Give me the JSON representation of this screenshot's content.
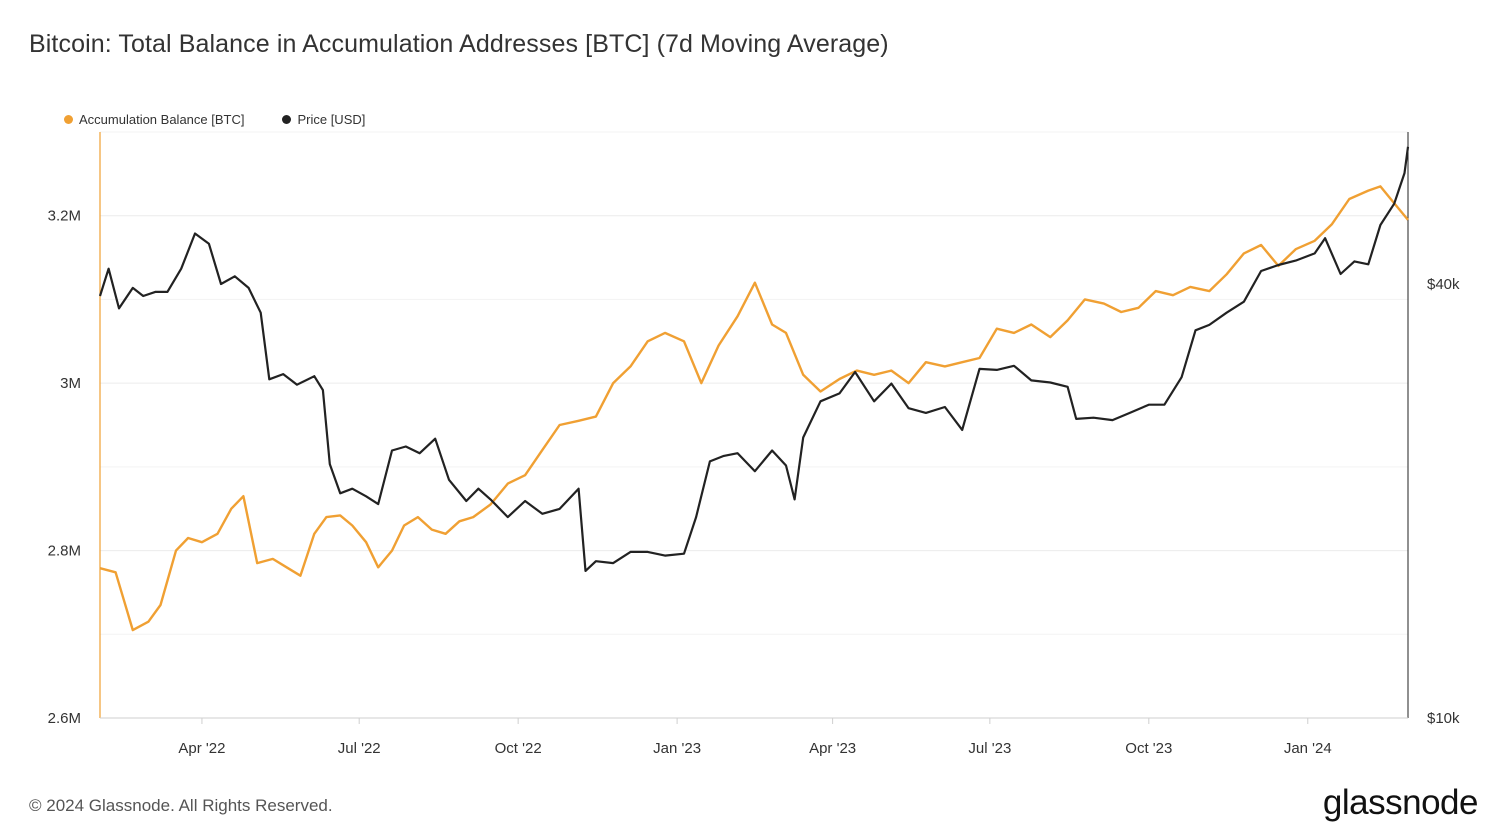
{
  "title": "Bitcoin: Total Balance in Accumulation Addresses [BTC] (7d Moving Average)",
  "footer": "© 2024 Glassnode. All Rights Reserved.",
  "logo": "glassnode",
  "chart_data": {
    "type": "line",
    "title": "Bitcoin: Total Balance in Accumulation Addresses [BTC] (7d Moving Average)",
    "legend_position": "top-left",
    "grid": true,
    "x_ticks": [
      "Apr '22",
      "Jul '22",
      "Oct '22",
      "Jan '23",
      "Apr '23",
      "Jul '23",
      "Oct '23",
      "Jan '24"
    ],
    "x_range": [
      "2022-02-01",
      "2024-02-28"
    ],
    "y_left": {
      "ticks": [
        "2.6M",
        "2.8M",
        "3M",
        "3.2M"
      ],
      "tick_values": [
        2600000,
        2800000,
        3000000,
        3200000
      ],
      "range": [
        2600000,
        3300000
      ]
    },
    "y_right": {
      "scale": "log",
      "ticks": [
        "$10k",
        "$40k"
      ],
      "tick_values": [
        10000,
        40000
      ],
      "range": [
        10000,
        65000
      ]
    },
    "colors": {
      "accumulation": "#f0a033",
      "price": "#222222"
    },
    "series": [
      {
        "name": "Accumulation Balance [BTC]",
        "axis": "left",
        "x": [
          "2022-02-01",
          "2022-02-10",
          "2022-02-20",
          "2022-03-01",
          "2022-03-08",
          "2022-03-17",
          "2022-03-24",
          "2022-04-01",
          "2022-04-10",
          "2022-04-18",
          "2022-04-25",
          "2022-05-03",
          "2022-05-12",
          "2022-05-20",
          "2022-05-28",
          "2022-06-05",
          "2022-06-12",
          "2022-06-20",
          "2022-06-27",
          "2022-07-05",
          "2022-07-12",
          "2022-07-20",
          "2022-07-27",
          "2022-08-04",
          "2022-08-12",
          "2022-08-20",
          "2022-08-28",
          "2022-09-05",
          "2022-09-15",
          "2022-09-25",
          "2022-10-05",
          "2022-10-15",
          "2022-10-25",
          "2022-11-05",
          "2022-11-15",
          "2022-11-25",
          "2022-12-05",
          "2022-12-15",
          "2022-12-25",
          "2023-01-05",
          "2023-01-15",
          "2023-01-25",
          "2023-02-05",
          "2023-02-15",
          "2023-02-25",
          "2023-03-05",
          "2023-03-15",
          "2023-03-25",
          "2023-04-05",
          "2023-04-15",
          "2023-04-25",
          "2023-05-05",
          "2023-05-15",
          "2023-05-25",
          "2023-06-05",
          "2023-06-15",
          "2023-06-25",
          "2023-07-05",
          "2023-07-15",
          "2023-07-25",
          "2023-08-05",
          "2023-08-15",
          "2023-08-25",
          "2023-09-05",
          "2023-09-15",
          "2023-09-25",
          "2023-10-05",
          "2023-10-15",
          "2023-10-25",
          "2023-11-05",
          "2023-11-15",
          "2023-11-25",
          "2023-12-05",
          "2023-12-15",
          "2023-12-25",
          "2024-01-05",
          "2024-01-15",
          "2024-01-25",
          "2024-02-05",
          "2024-02-12",
          "2024-02-20",
          "2024-02-28"
        ],
        "values": [
          2779000,
          2774000,
          2705000,
          2715000,
          2735000,
          2800000,
          2815000,
          2810000,
          2820000,
          2850000,
          2865000,
          2785000,
          2790000,
          2780000,
          2770000,
          2820000,
          2840000,
          2842000,
          2830000,
          2810000,
          2780000,
          2800000,
          2830000,
          2840000,
          2825000,
          2820000,
          2835000,
          2840000,
          2855000,
          2880000,
          2890000,
          2920000,
          2950000,
          2955000,
          2960000,
          3000000,
          3020000,
          3050000,
          3060000,
          3050000,
          3000000,
          3045000,
          3080000,
          3120000,
          3070000,
          3060000,
          3010000,
          2990000,
          3005000,
          3015000,
          3010000,
          3015000,
          3000000,
          3025000,
          3020000,
          3025000,
          3030000,
          3065000,
          3060000,
          3070000,
          3055000,
          3075000,
          3100000,
          3095000,
          3085000,
          3090000,
          3110000,
          3105000,
          3115000,
          3110000,
          3130000,
          3155000,
          3165000,
          3140000,
          3160000,
          3170000,
          3190000,
          3220000,
          3230000,
          3235000,
          3215000,
          3195000
        ]
      },
      {
        "name": "Price [USD]",
        "axis": "right",
        "x": [
          "2022-02-01",
          "2022-02-06",
          "2022-02-12",
          "2022-02-20",
          "2022-02-26",
          "2022-03-05",
          "2022-03-12",
          "2022-03-20",
          "2022-03-28",
          "2022-04-05",
          "2022-04-12",
          "2022-04-20",
          "2022-04-28",
          "2022-05-05",
          "2022-05-10",
          "2022-05-18",
          "2022-05-26",
          "2022-06-05",
          "2022-06-10",
          "2022-06-14",
          "2022-06-20",
          "2022-06-27",
          "2022-07-05",
          "2022-07-12",
          "2022-07-20",
          "2022-07-28",
          "2022-08-05",
          "2022-08-14",
          "2022-08-22",
          "2022-09-01",
          "2022-09-08",
          "2022-09-15",
          "2022-09-25",
          "2022-10-05",
          "2022-10-15",
          "2022-10-25",
          "2022-11-05",
          "2022-11-09",
          "2022-11-15",
          "2022-11-25",
          "2022-12-05",
          "2022-12-15",
          "2022-12-25",
          "2023-01-05",
          "2023-01-12",
          "2023-01-20",
          "2023-01-28",
          "2023-02-05",
          "2023-02-15",
          "2023-02-25",
          "2023-03-05",
          "2023-03-10",
          "2023-03-15",
          "2023-03-25",
          "2023-04-05",
          "2023-04-14",
          "2023-04-25",
          "2023-05-05",
          "2023-05-15",
          "2023-05-25",
          "2023-06-05",
          "2023-06-15",
          "2023-06-25",
          "2023-07-05",
          "2023-07-15",
          "2023-07-25",
          "2023-08-05",
          "2023-08-15",
          "2023-08-20",
          "2023-08-30",
          "2023-09-10",
          "2023-09-20",
          "2023-10-01",
          "2023-10-10",
          "2023-10-20",
          "2023-10-28",
          "2023-11-05",
          "2023-11-15",
          "2023-11-25",
          "2023-12-05",
          "2023-12-15",
          "2023-12-25",
          "2024-01-05",
          "2024-01-11",
          "2024-01-20",
          "2024-01-28",
          "2024-02-05",
          "2024-02-12",
          "2024-02-20",
          "2024-02-26",
          "2024-02-28"
        ],
        "values": [
          38500,
          42000,
          37000,
          39500,
          38500,
          39000,
          39000,
          42000,
          47000,
          45500,
          40000,
          41000,
          39500,
          36500,
          29500,
          30000,
          29000,
          29800,
          28500,
          22500,
          20500,
          20800,
          20300,
          19800,
          23500,
          23800,
          23300,
          24400,
          21400,
          20000,
          20800,
          20100,
          19000,
          20000,
          19200,
          19500,
          20800,
          16000,
          16500,
          16400,
          17000,
          17000,
          16800,
          16900,
          19000,
          22700,
          23100,
          23300,
          22000,
          23500,
          22400,
          20100,
          24500,
          27500,
          28200,
          30200,
          27500,
          29100,
          26900,
          26500,
          27000,
          25100,
          30500,
          30400,
          30800,
          29400,
          29200,
          28800,
          26000,
          26100,
          25900,
          26500,
          27200,
          27200,
          29700,
          34500,
          35100,
          36500,
          37800,
          41700,
          42500,
          43100,
          44100,
          46300,
          41300,
          43000,
          42600,
          48300,
          51700,
          57000,
          62000
        ]
      }
    ]
  }
}
